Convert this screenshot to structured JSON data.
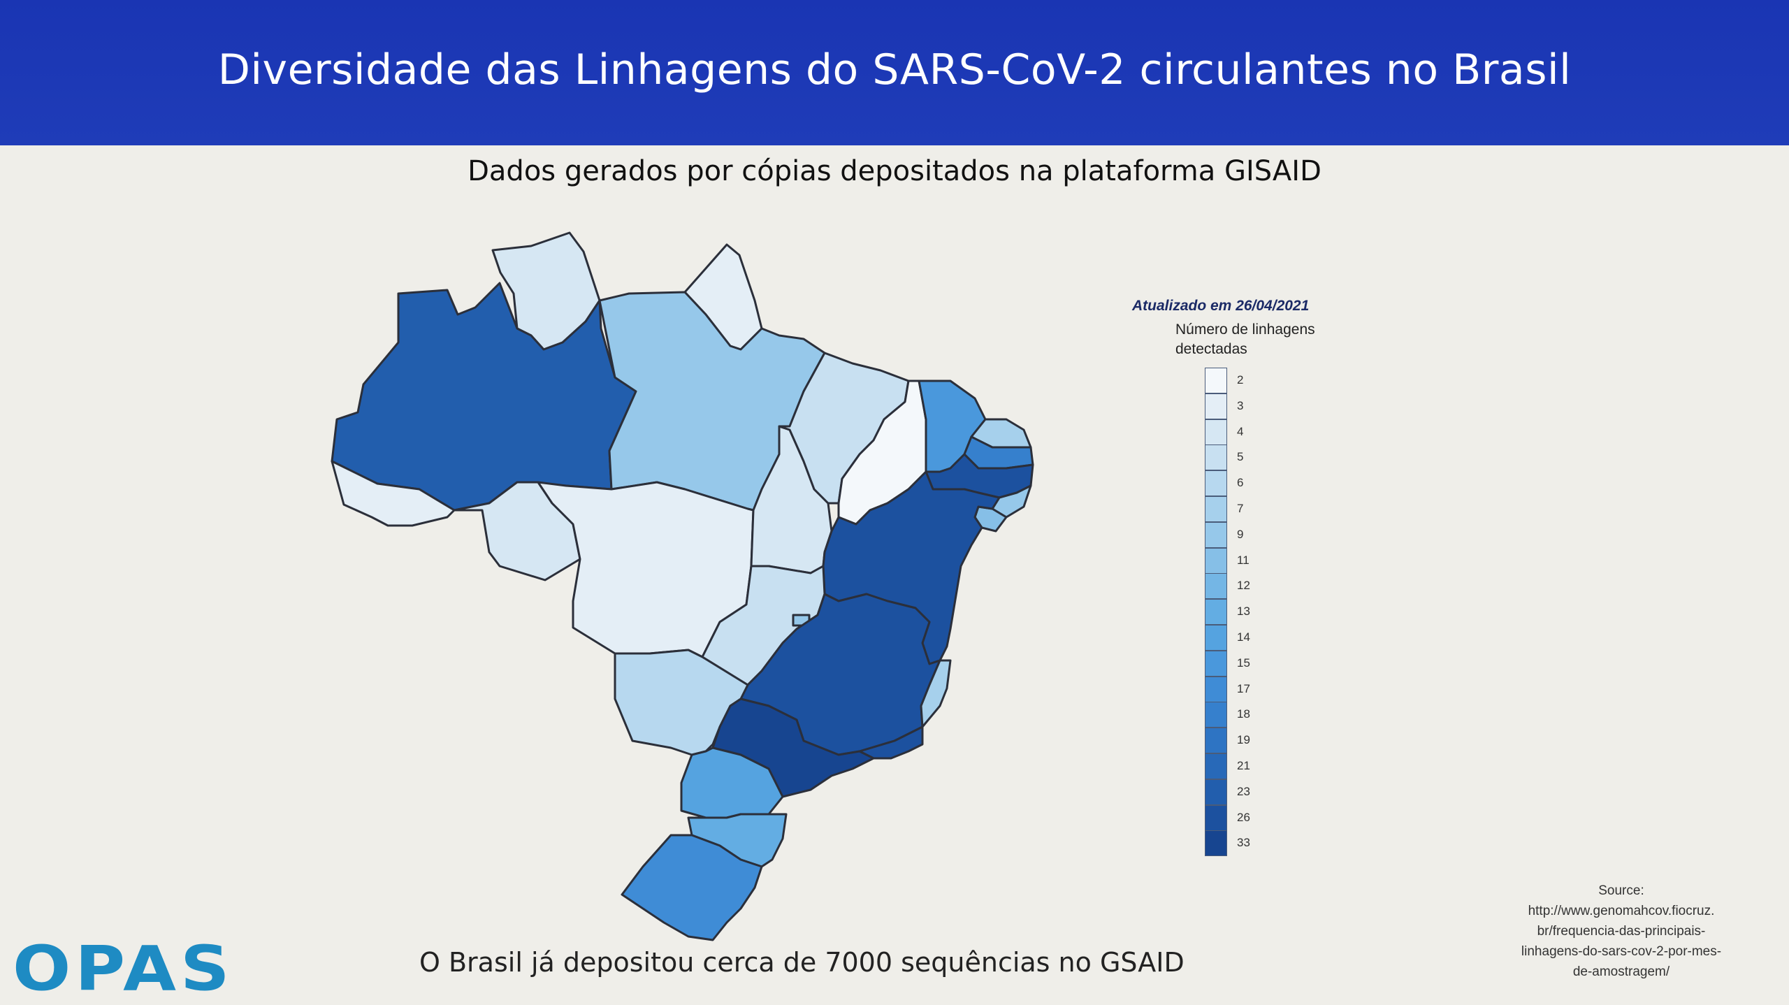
{
  "header": {
    "title": "Diversidade das Linhagens do SARS-CoV-2 circulantes no Brasil"
  },
  "subtitle": "Dados gerados por cópias depositados na plataforma GISAID",
  "legend": {
    "updated": "Atualizado em 26/04/2021",
    "title": "Número de linhagens detectadas",
    "values": [
      "2",
      "3",
      "4",
      "5",
      "6",
      "7",
      "9",
      "11",
      "12",
      "13",
      "14",
      "15",
      "17",
      "18",
      "19",
      "21",
      "23",
      "26",
      "33"
    ],
    "colors": [
      "#f4f8fb",
      "#e4eef6",
      "#d6e7f3",
      "#c8e0f1",
      "#b7d8ef",
      "#a6d0ec",
      "#96c8ea",
      "#86bfe7",
      "#74b6e5",
      "#63ade3",
      "#55a3e0",
      "#4a98dc",
      "#3f8cd6",
      "#3680cd",
      "#2e74c3",
      "#2869b8",
      "#225ead",
      "#1c519f",
      "#174590"
    ]
  },
  "map": {
    "states": [
      {
        "code": "RR",
        "level": "4"
      },
      {
        "code": "AP",
        "level": "3"
      },
      {
        "code": "AM",
        "level": "23"
      },
      {
        "code": "PA",
        "level": "9"
      },
      {
        "code": "AC",
        "level": "3"
      },
      {
        "code": "RO",
        "level": "4"
      },
      {
        "code": "MT",
        "level": "3"
      },
      {
        "code": "TO",
        "level": "4"
      },
      {
        "code": "MA",
        "level": "5"
      },
      {
        "code": "PI",
        "level": "2"
      },
      {
        "code": "CE",
        "level": "15"
      },
      {
        "code": "RN",
        "level": "7"
      },
      {
        "code": "PB",
        "level": "18"
      },
      {
        "code": "PE",
        "level": "26"
      },
      {
        "code": "AL",
        "level": "9"
      },
      {
        "code": "SE",
        "level": "11"
      },
      {
        "code": "BA",
        "level": "26"
      },
      {
        "code": "GO",
        "level": "5"
      },
      {
        "code": "DF",
        "level": "9"
      },
      {
        "code": "MG",
        "level": "26"
      },
      {
        "code": "ES",
        "level": "7"
      },
      {
        "code": "RJ",
        "level": "26"
      },
      {
        "code": "MS",
        "level": "6"
      },
      {
        "code": "SP",
        "level": "33"
      },
      {
        "code": "PR",
        "level": "14"
      },
      {
        "code": "SC",
        "level": "13"
      },
      {
        "code": "RS",
        "level": "17"
      }
    ]
  },
  "footer": {
    "note": "O Brasil já depositou cerca de 7000 sequências no GSAID"
  },
  "logo": {
    "text": "OPAS"
  },
  "source": {
    "lines": [
      "Source:",
      "http://www.genomahcov.fiocruz.",
      "br/frequencia-das-principais-",
      "linhagens-do-sars-cov-2-por-mes-",
      "de-amostragem/"
    ]
  }
}
